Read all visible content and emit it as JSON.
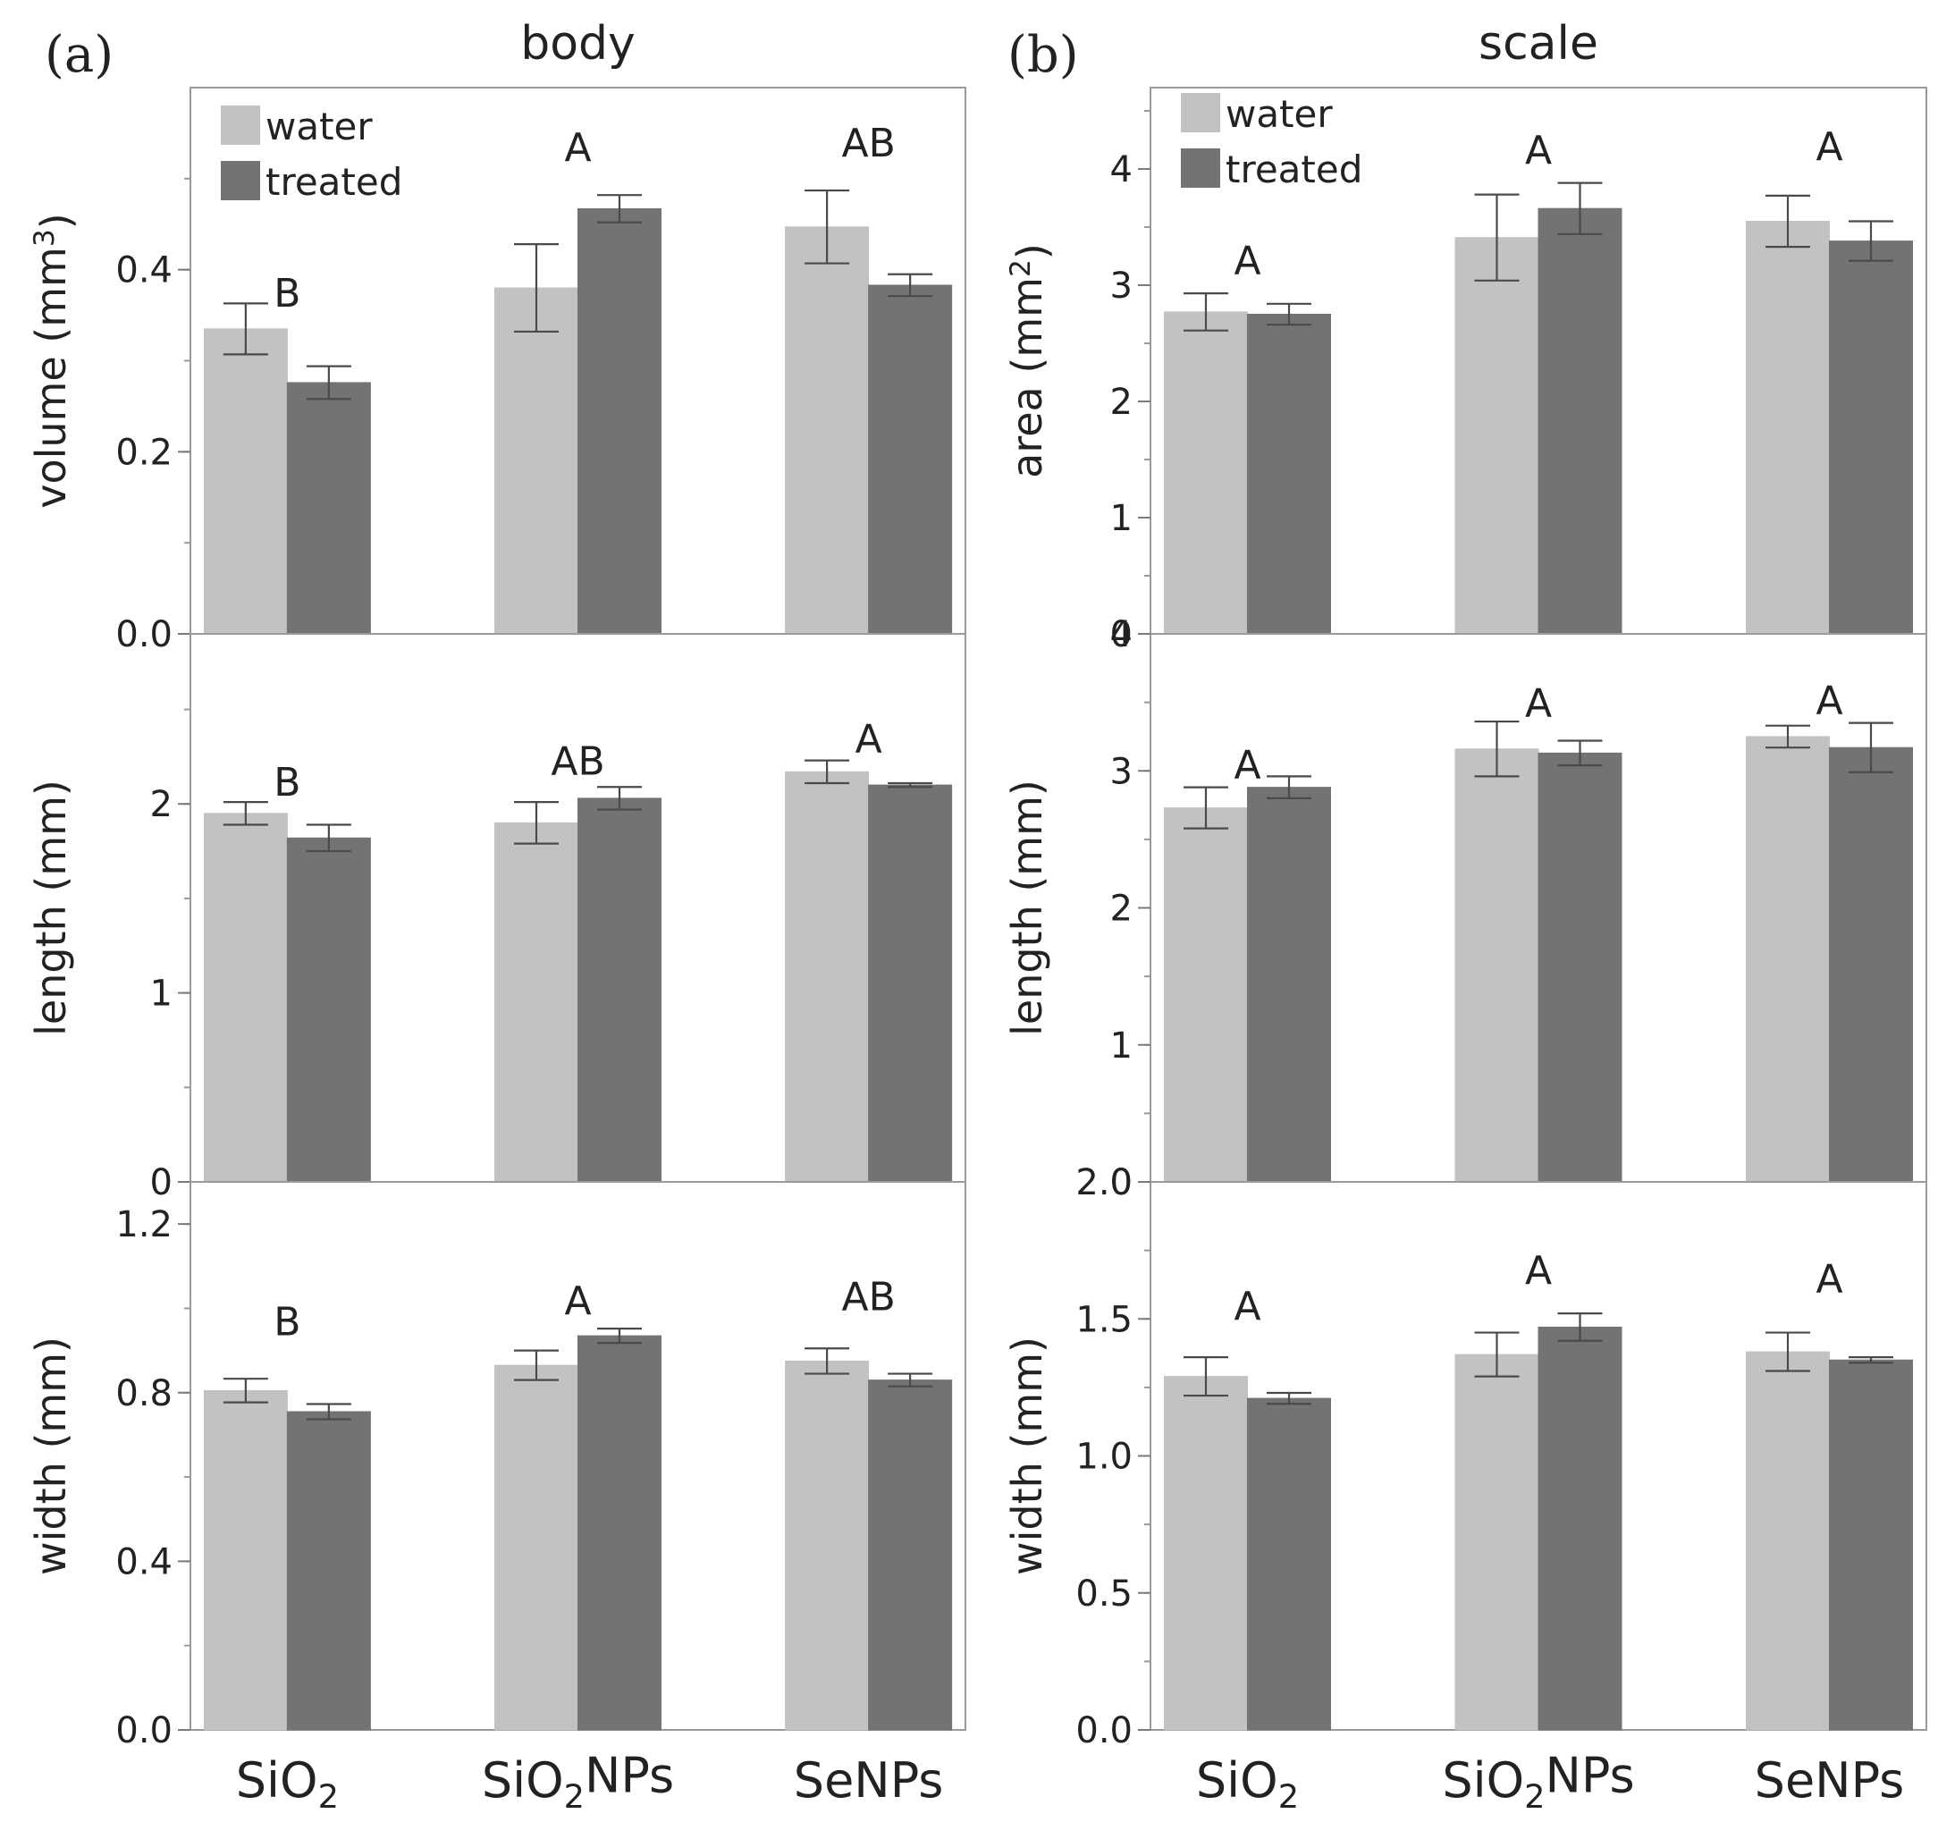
{
  "figure": {
    "panel_labels": [
      "(a)",
      "(b)"
    ],
    "column_titles": [
      "body",
      "scale"
    ],
    "categories": [
      "SiO2",
      "SiO2NPs",
      "SeNPs"
    ],
    "legend": [
      {
        "label": "water",
        "color": "#c2c2c2"
      },
      {
        "label": "treated",
        "color": "#737373"
      }
    ]
  },
  "chart_data": [
    {
      "type": "bar",
      "column": "body",
      "ylabel": "volume (mm3)",
      "ylim": [
        0,
        0.6
      ],
      "yticks": [
        "0.0",
        "0.2",
        "0.4"
      ],
      "ytick_values": [
        0,
        0.2,
        0.4
      ],
      "minor_step": 0.1,
      "categories": [
        "SiO2",
        "SiO2NPs",
        "SeNPs"
      ],
      "series": [
        {
          "name": "water",
          "values": [
            0.335,
            0.38,
            0.447
          ],
          "errors": [
            0.028,
            0.048,
            0.04
          ]
        },
        {
          "name": "treated",
          "values": [
            0.276,
            0.467,
            0.383
          ],
          "errors": [
            0.018,
            0.015,
            0.012
          ]
        }
      ],
      "group_letters": [
        "B",
        "A",
        "AB"
      ],
      "group_letter_values": [
        0.375,
        0.535,
        0.54
      ],
      "legend_shown": true
    },
    {
      "type": "bar",
      "column": "body",
      "ylabel": "length (mm)",
      "ylim": [
        0,
        2.9
      ],
      "yticks": [
        "0",
        "1",
        "2"
      ],
      "ytick_values": [
        0,
        1,
        2
      ],
      "minor_step": 0.5,
      "categories": [
        "SiO2",
        "SiO2NPs",
        "SeNPs"
      ],
      "series": [
        {
          "name": "water",
          "values": [
            1.95,
            1.9,
            2.17
          ],
          "errors": [
            0.06,
            0.11,
            0.06
          ]
        },
        {
          "name": "treated",
          "values": [
            1.82,
            2.03,
            2.1
          ],
          "errors": [
            0.07,
            0.06,
            0.01
          ]
        }
      ],
      "group_letters": [
        "B",
        "AB",
        "A"
      ],
      "group_letter_values": [
        2.12,
        2.23,
        2.35
      ],
      "legend_shown": false
    },
    {
      "type": "bar",
      "column": "body",
      "ylabel": "width (mm)",
      "ylim": [
        0,
        1.3
      ],
      "yticks": [
        "0.0",
        "0.4",
        "0.8",
        "1.2"
      ],
      "ytick_values": [
        0,
        0.4,
        0.8,
        1.2
      ],
      "minor_step": 0.2,
      "categories": [
        "SiO2",
        "SiO2NPs",
        "SeNPs"
      ],
      "series": [
        {
          "name": "water",
          "values": [
            0.805,
            0.865,
            0.875
          ],
          "errors": [
            0.028,
            0.035,
            0.03
          ]
        },
        {
          "name": "treated",
          "values": [
            0.755,
            0.935,
            0.83
          ],
          "errors": [
            0.018,
            0.017,
            0.015
          ]
        }
      ],
      "group_letters": [
        "B",
        "A",
        "AB"
      ],
      "group_letter_values": [
        0.97,
        1.02,
        1.03
      ],
      "legend_shown": false
    },
    {
      "type": "bar",
      "column": "scale",
      "ylabel": "area (mm2)",
      "ylim": [
        0,
        4.7
      ],
      "yticks": [
        "0",
        "1",
        "2",
        "3",
        "4"
      ],
      "ytick_values": [
        0,
        1,
        2,
        3,
        4
      ],
      "minor_step": 0.5,
      "categories": [
        "SiO2",
        "SiO2NPs",
        "SeNPs"
      ],
      "series": [
        {
          "name": "water",
          "values": [
            2.77,
            3.41,
            3.55
          ],
          "errors": [
            0.16,
            0.37,
            0.22
          ]
        },
        {
          "name": "treated",
          "values": [
            2.75,
            3.66,
            3.38
          ],
          "errors": [
            0.09,
            0.22,
            0.17
          ]
        }
      ],
      "group_letters": [
        "A",
        "A",
        "A"
      ],
      "group_letter_values": [
        3.22,
        4.17,
        4.2
      ],
      "legend_shown": true
    },
    {
      "type": "bar",
      "column": "scale",
      "ylabel": "length (mm)",
      "ylim": [
        0,
        4.0
      ],
      "yticks": [
        "0",
        "1",
        "2",
        "3",
        "4"
      ],
      "ytick_values": [
        0,
        1,
        2,
        3,
        4
      ],
      "minor_step": 0.5,
      "categories": [
        "SiO2",
        "SiO2NPs",
        "SeNPs"
      ],
      "series": [
        {
          "name": "water",
          "values": [
            2.73,
            3.16,
            3.25
          ],
          "errors": [
            0.15,
            0.2,
            0.08
          ]
        },
        {
          "name": "treated",
          "values": [
            2.88,
            3.13,
            3.17
          ],
          "errors": [
            0.08,
            0.09,
            0.18
          ]
        }
      ],
      "group_letters": [
        "A",
        "A",
        "A"
      ],
      "group_letter_values": [
        3.05,
        3.5,
        3.52
      ],
      "legend_shown": false
    },
    {
      "type": "bar",
      "column": "scale",
      "ylabel": "width (mm)",
      "ylim": [
        0,
        2.0
      ],
      "yticks": [
        "0.0",
        "0.5",
        "1.0",
        "1.5",
        "2.0"
      ],
      "ytick_values": [
        0,
        0.5,
        1.0,
        1.5,
        2.0
      ],
      "minor_step": 0.25,
      "categories": [
        "SiO2",
        "SiO2NPs",
        "SeNPs"
      ],
      "series": [
        {
          "name": "water",
          "values": [
            1.29,
            1.37,
            1.38
          ],
          "errors": [
            0.07,
            0.08,
            0.07
          ]
        },
        {
          "name": "treated",
          "values": [
            1.21,
            1.47,
            1.35
          ],
          "errors": [
            0.02,
            0.05,
            0.01
          ]
        }
      ],
      "group_letters": [
        "A",
        "A",
        "A"
      ],
      "group_letter_values": [
        1.55,
        1.68,
        1.65
      ],
      "legend_shown": false
    }
  ]
}
